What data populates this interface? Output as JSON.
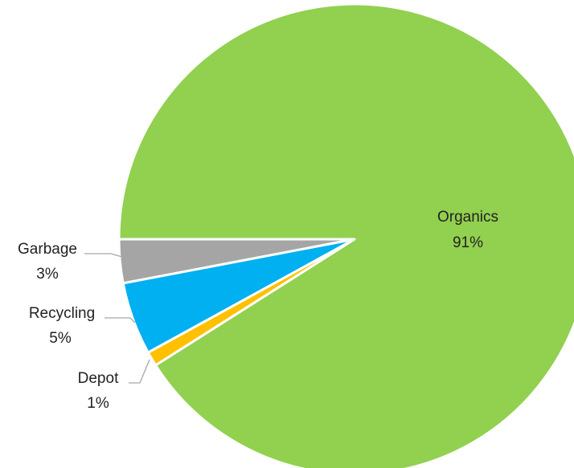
{
  "chart_data": {
    "type": "pie",
    "title": "",
    "start_angle_deg": 180,
    "direction": "counterclockwise",
    "slices": [
      {
        "name": "Garbage",
        "value": 3,
        "label": "3%",
        "color": "#A5A5A5"
      },
      {
        "name": "Recycling",
        "value": 5,
        "label": "5%",
        "color": "#00B0F0"
      },
      {
        "name": "Depot",
        "value": 1,
        "label": "1%",
        "color": "#FFC000"
      },
      {
        "name": "Organics",
        "value": 91,
        "label": "91%",
        "color": "#92D050"
      }
    ],
    "slice_border_color": "#FFFFFF",
    "leader_line_color": "#A6A6A6"
  }
}
